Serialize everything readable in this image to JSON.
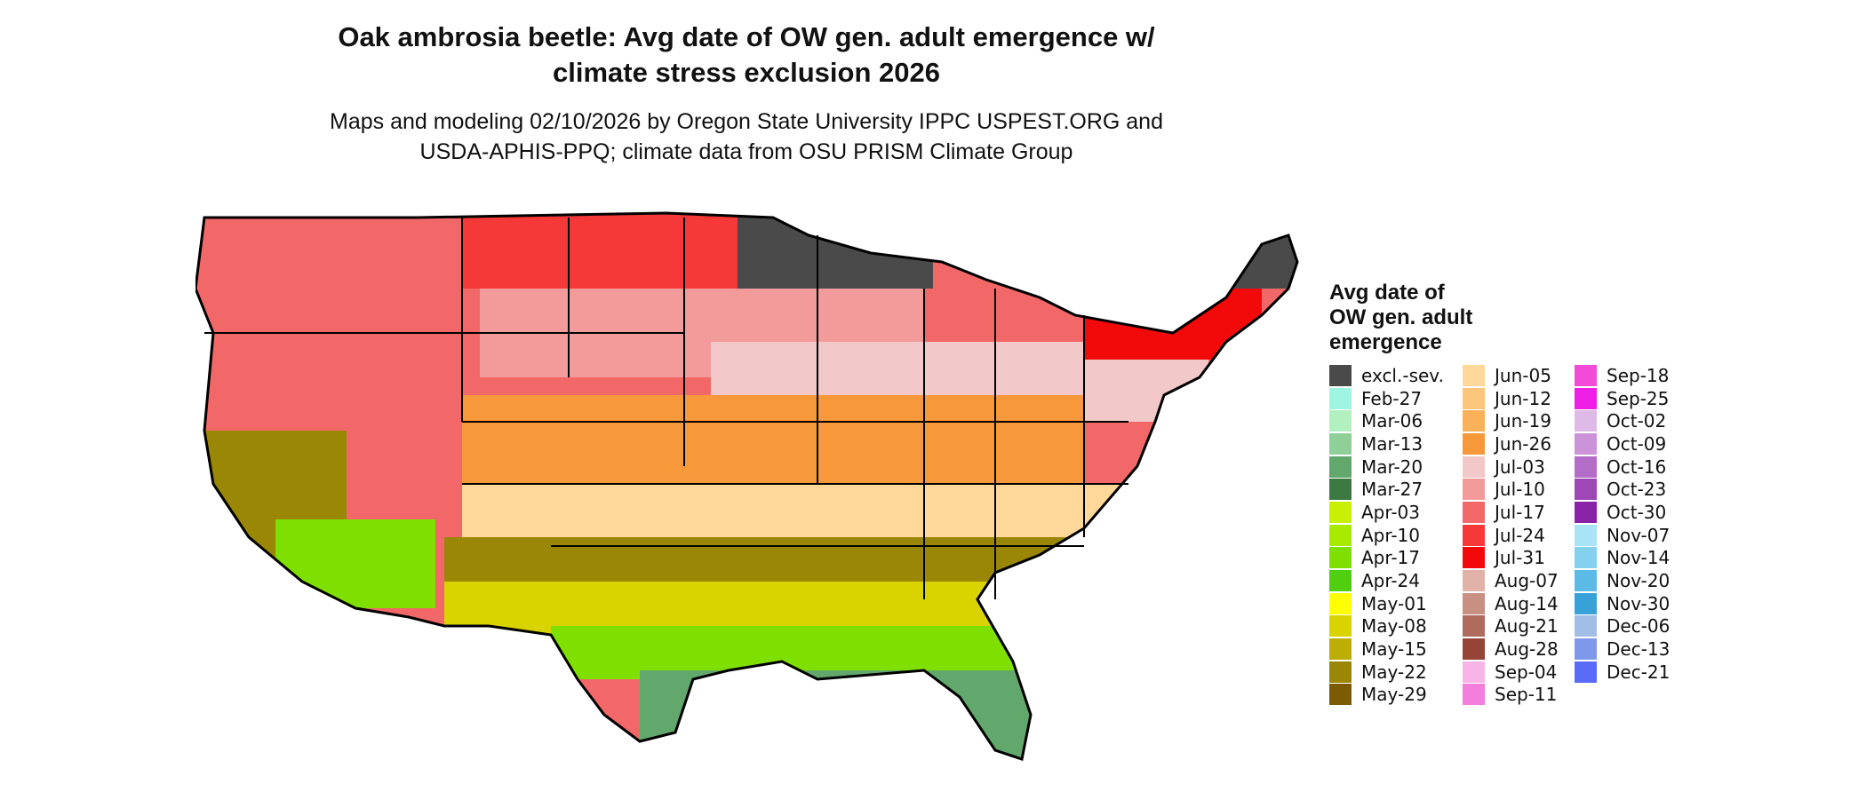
{
  "title": {
    "line1": "Oak ambrosia beetle: Avg date of OW gen. adult emergence w/",
    "line2": "climate stress exclusion 2026"
  },
  "subtitle": {
    "line1": "Maps and modeling 02/10/2026 by Oregon State University IPPC USPEST.ORG and",
    "line2": "USDA-APHIS-PPQ; climate data from OSU PRISM Climate Group"
  },
  "legend": {
    "title_lines": [
      "Avg date of",
      "OW gen. adult",
      "emergence"
    ],
    "columns": [
      [
        {
          "label": "excl.-sev.",
          "color": "#4a4a4a"
        },
        {
          "label": "Feb-27",
          "color": "#9ff5e1"
        },
        {
          "label": "Mar-06",
          "color": "#b2f0c0"
        },
        {
          "label": "Mar-13",
          "color": "#8fcf98"
        },
        {
          "label": "Mar-20",
          "color": "#62a86d"
        },
        {
          "label": "Mar-27",
          "color": "#3c7a42"
        },
        {
          "label": "Apr-03",
          "color": "#c8f000"
        },
        {
          "label": "Apr-10",
          "color": "#a6eb00"
        },
        {
          "label": "Apr-17",
          "color": "#7fe000"
        },
        {
          "label": "Apr-24",
          "color": "#4fcf10"
        },
        {
          "label": "May-01",
          "color": "#ffff00"
        },
        {
          "label": "May-08",
          "color": "#d9d300"
        },
        {
          "label": "May-15",
          "color": "#bcae05"
        },
        {
          "label": "May-22",
          "color": "#9a8706"
        },
        {
          "label": "May-29",
          "color": "#7b5c05"
        }
      ],
      [
        {
          "label": "Jun-05",
          "color": "#ffd89a"
        },
        {
          "label": "Jun-12",
          "color": "#fcc67a"
        },
        {
          "label": "Jun-19",
          "color": "#fab15a"
        },
        {
          "label": "Jun-26",
          "color": "#f7983a"
        },
        {
          "label": "Jul-03",
          "color": "#f2c8c8"
        },
        {
          "label": "Jul-10",
          "color": "#f39b9b"
        },
        {
          "label": "Jul-17",
          "color": "#f26868"
        },
        {
          "label": "Jul-24",
          "color": "#f53838"
        },
        {
          "label": "Jul-31",
          "color": "#f20a0a"
        },
        {
          "label": "Aug-07",
          "color": "#e0b2a8"
        },
        {
          "label": "Aug-14",
          "color": "#c88f83"
        },
        {
          "label": "Aug-21",
          "color": "#b06b5f"
        },
        {
          "label": "Aug-28",
          "color": "#964438"
        },
        {
          "label": "Sep-04",
          "color": "#f8b4e4"
        },
        {
          "label": "Sep-11",
          "color": "#f47edb"
        }
      ],
      [
        {
          "label": "Sep-18",
          "color": "#f24bd8"
        },
        {
          "label": "Sep-25",
          "color": "#ee1ee6"
        },
        {
          "label": "Oct-02",
          "color": "#ddbbe6"
        },
        {
          "label": "Oct-09",
          "color": "#cc93d8"
        },
        {
          "label": "Oct-16",
          "color": "#b36cc8"
        },
        {
          "label": "Oct-23",
          "color": "#9e48b8"
        },
        {
          "label": "Oct-30",
          "color": "#8a22a8"
        },
        {
          "label": "Nov-07",
          "color": "#a8e4f5"
        },
        {
          "label": "Nov-14",
          "color": "#84d0ef"
        },
        {
          "label": "Nov-20",
          "color": "#5cbbe6"
        },
        {
          "label": "Nov-30",
          "color": "#38a2d8"
        },
        {
          "label": "Dec-06",
          "color": "#a2bde6"
        },
        {
          "label": "Dec-13",
          "color": "#7f98ec"
        },
        {
          "label": "Dec-21",
          "color": "#5a6cf5"
        }
      ]
    ]
  }
}
